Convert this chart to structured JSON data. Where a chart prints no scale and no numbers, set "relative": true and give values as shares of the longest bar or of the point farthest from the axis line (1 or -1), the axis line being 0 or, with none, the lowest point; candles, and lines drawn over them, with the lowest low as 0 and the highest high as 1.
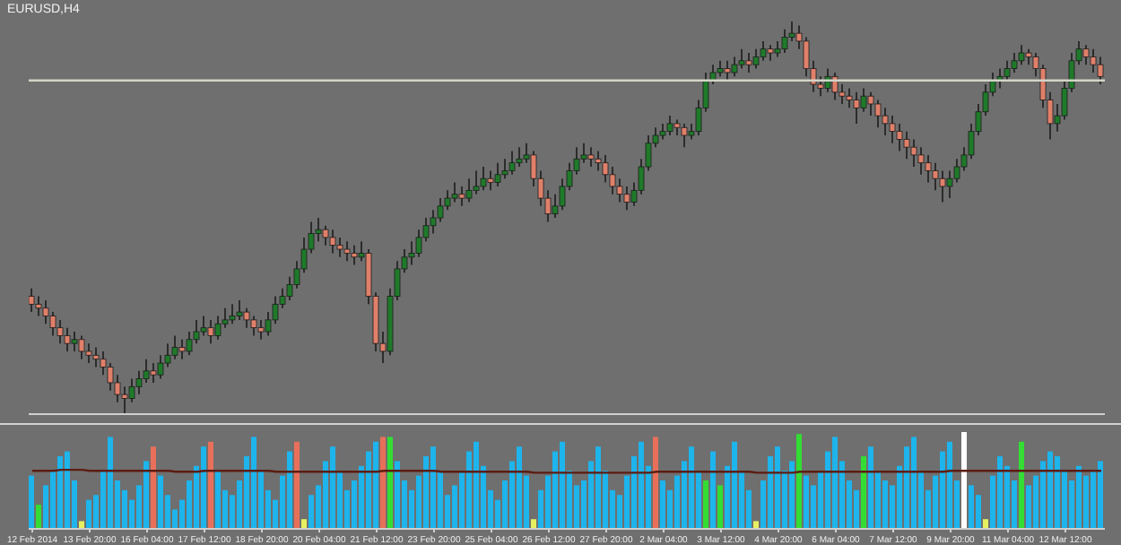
{
  "chart_data": [
    {
      "type": "candlestick",
      "title": "EURUSD,H4",
      "relative": true,
      "tick_labels": false,
      "categories": [
        null,
        null,
        null,
        null,
        null,
        null,
        null,
        null,
        null,
        null,
        null,
        null,
        null,
        null,
        null,
        null,
        null,
        null,
        null,
        null,
        null,
        null,
        null,
        null,
        null,
        null,
        null,
        null,
        null,
        null,
        null,
        null,
        null,
        null,
        null,
        null,
        null,
        null,
        null,
        null,
        null,
        null,
        null,
        null,
        null,
        null,
        null,
        null,
        null,
        null,
        null,
        null,
        null,
        null,
        null,
        null,
        null,
        null,
        null,
        null,
        null,
        null,
        null,
        null,
        null,
        null,
        null,
        null,
        null,
        null,
        null,
        null,
        null,
        null,
        null,
        null,
        null,
        null,
        null,
        null,
        null,
        null,
        null,
        null,
        null,
        null,
        null,
        null,
        null,
        null,
        null,
        null,
        null,
        null,
        null,
        null,
        null,
        null,
        null,
        null,
        null,
        null,
        null,
        null,
        null,
        null,
        null,
        null,
        null,
        null,
        null,
        null,
        null,
        null,
        null,
        null,
        null,
        null,
        null,
        null,
        null,
        null,
        null,
        null,
        null,
        null,
        null,
        null,
        null,
        null,
        null,
        null,
        null,
        null,
        null,
        null,
        null,
        null,
        null,
        null,
        null,
        null,
        null,
        null,
        null,
        null,
        null,
        null,
        null,
        null
      ],
      "ohlc": [
        [
          0.3,
          0.32,
          0.26,
          0.28
        ],
        [
          0.28,
          0.3,
          0.25,
          0.27
        ],
        [
          0.27,
          0.29,
          0.23,
          0.25
        ],
        [
          0.25,
          0.26,
          0.2,
          0.22
        ],
        [
          0.22,
          0.24,
          0.18,
          0.2
        ],
        [
          0.2,
          0.22,
          0.16,
          0.18
        ],
        [
          0.18,
          0.21,
          0.16,
          0.19
        ],
        [
          0.19,
          0.2,
          0.14,
          0.16
        ],
        [
          0.16,
          0.18,
          0.13,
          0.15
        ],
        [
          0.15,
          0.17,
          0.12,
          0.14
        ],
        [
          0.14,
          0.16,
          0.1,
          0.12
        ],
        [
          0.12,
          0.13,
          0.06,
          0.08
        ],
        [
          0.08,
          0.1,
          0.03,
          0.05
        ],
        [
          0.05,
          0.07,
          0.0,
          0.04
        ],
        [
          0.04,
          0.09,
          0.03,
          0.07
        ],
        [
          0.07,
          0.11,
          0.05,
          0.09
        ],
        [
          0.09,
          0.14,
          0.08,
          0.11
        ],
        [
          0.11,
          0.13,
          0.08,
          0.1
        ],
        [
          0.1,
          0.15,
          0.09,
          0.13
        ],
        [
          0.13,
          0.18,
          0.12,
          0.15
        ],
        [
          0.15,
          0.2,
          0.14,
          0.17
        ],
        [
          0.17,
          0.19,
          0.14,
          0.16
        ],
        [
          0.16,
          0.21,
          0.15,
          0.19
        ],
        [
          0.19,
          0.24,
          0.18,
          0.21
        ],
        [
          0.21,
          0.25,
          0.2,
          0.22
        ],
        [
          0.22,
          0.24,
          0.18,
          0.2
        ],
        [
          0.2,
          0.25,
          0.19,
          0.23
        ],
        [
          0.23,
          0.27,
          0.22,
          0.24
        ],
        [
          0.24,
          0.28,
          0.23,
          0.25
        ],
        [
          0.25,
          0.29,
          0.24,
          0.26
        ],
        [
          0.26,
          0.27,
          0.22,
          0.24
        ],
        [
          0.24,
          0.25,
          0.2,
          0.22
        ],
        [
          0.22,
          0.24,
          0.19,
          0.21
        ],
        [
          0.21,
          0.26,
          0.2,
          0.24
        ],
        [
          0.24,
          0.3,
          0.23,
          0.28
        ],
        [
          0.28,
          0.32,
          0.27,
          0.3
        ],
        [
          0.3,
          0.35,
          0.29,
          0.33
        ],
        [
          0.33,
          0.39,
          0.32,
          0.37
        ],
        [
          0.37,
          0.45,
          0.36,
          0.42
        ],
        [
          0.42,
          0.49,
          0.41,
          0.46
        ],
        [
          0.46,
          0.5,
          0.44,
          0.47
        ],
        [
          0.47,
          0.48,
          0.43,
          0.45
        ],
        [
          0.45,
          0.47,
          0.41,
          0.43
        ],
        [
          0.43,
          0.45,
          0.4,
          0.42
        ],
        [
          0.42,
          0.44,
          0.39,
          0.41
        ],
        [
          0.41,
          0.43,
          0.38,
          0.4
        ],
        [
          0.4,
          0.44,
          0.39,
          0.41
        ],
        [
          0.41,
          0.42,
          0.28,
          0.3
        ],
        [
          0.3,
          0.31,
          0.16,
          0.18
        ],
        [
          0.18,
          0.21,
          0.13,
          0.16
        ],
        [
          0.16,
          0.32,
          0.15,
          0.3
        ],
        [
          0.3,
          0.39,
          0.29,
          0.37
        ],
        [
          0.37,
          0.42,
          0.36,
          0.4
        ],
        [
          0.4,
          0.44,
          0.38,
          0.41
        ],
        [
          0.41,
          0.47,
          0.4,
          0.45
        ],
        [
          0.45,
          0.5,
          0.44,
          0.48
        ],
        [
          0.48,
          0.52,
          0.46,
          0.5
        ],
        [
          0.5,
          0.55,
          0.49,
          0.53
        ],
        [
          0.53,
          0.57,
          0.52,
          0.55
        ],
        [
          0.55,
          0.59,
          0.54,
          0.56
        ],
        [
          0.56,
          0.58,
          0.53,
          0.55
        ],
        [
          0.55,
          0.6,
          0.54,
          0.57
        ],
        [
          0.57,
          0.62,
          0.56,
          0.58
        ],
        [
          0.58,
          0.63,
          0.57,
          0.6
        ],
        [
          0.6,
          0.62,
          0.57,
          0.59
        ],
        [
          0.59,
          0.64,
          0.58,
          0.61
        ],
        [
          0.61,
          0.65,
          0.6,
          0.62
        ],
        [
          0.62,
          0.67,
          0.61,
          0.64
        ],
        [
          0.64,
          0.68,
          0.63,
          0.65
        ],
        [
          0.65,
          0.69,
          0.64,
          0.66
        ],
        [
          0.66,
          0.67,
          0.58,
          0.6
        ],
        [
          0.6,
          0.62,
          0.53,
          0.55
        ],
        [
          0.55,
          0.57,
          0.49,
          0.51
        ],
        [
          0.51,
          0.56,
          0.5,
          0.53
        ],
        [
          0.53,
          0.6,
          0.52,
          0.58
        ],
        [
          0.58,
          0.64,
          0.57,
          0.62
        ],
        [
          0.62,
          0.68,
          0.61,
          0.65
        ],
        [
          0.65,
          0.69,
          0.64,
          0.66
        ],
        [
          0.66,
          0.68,
          0.63,
          0.65
        ],
        [
          0.65,
          0.67,
          0.62,
          0.64
        ],
        [
          0.64,
          0.66,
          0.59,
          0.61
        ],
        [
          0.61,
          0.63,
          0.56,
          0.58
        ],
        [
          0.58,
          0.6,
          0.54,
          0.56
        ],
        [
          0.56,
          0.58,
          0.52,
          0.54
        ],
        [
          0.54,
          0.59,
          0.53,
          0.57
        ],
        [
          0.57,
          0.65,
          0.56,
          0.63
        ],
        [
          0.63,
          0.71,
          0.62,
          0.69
        ],
        [
          0.69,
          0.73,
          0.68,
          0.71
        ],
        [
          0.71,
          0.74,
          0.7,
          0.72
        ],
        [
          0.72,
          0.76,
          0.71,
          0.74
        ],
        [
          0.74,
          0.75,
          0.71,
          0.73
        ],
        [
          0.73,
          0.74,
          0.68,
          0.71
        ],
        [
          0.71,
          0.74,
          0.7,
          0.72
        ],
        [
          0.72,
          0.8,
          0.71,
          0.78
        ],
        [
          0.78,
          0.87,
          0.77,
          0.85
        ],
        [
          0.85,
          0.89,
          0.84,
          0.87
        ],
        [
          0.87,
          0.9,
          0.86,
          0.88
        ],
        [
          0.88,
          0.9,
          0.85,
          0.87
        ],
        [
          0.87,
          0.91,
          0.86,
          0.89
        ],
        [
          0.89,
          0.93,
          0.88,
          0.9
        ],
        [
          0.9,
          0.92,
          0.87,
          0.89
        ],
        [
          0.89,
          0.93,
          0.88,
          0.91
        ],
        [
          0.91,
          0.95,
          0.9,
          0.93
        ],
        [
          0.93,
          0.94,
          0.9,
          0.92
        ],
        [
          0.92,
          0.95,
          0.91,
          0.93
        ],
        [
          0.93,
          0.98,
          0.92,
          0.96
        ],
        [
          0.96,
          1.0,
          0.95,
          0.97
        ],
        [
          0.97,
          0.99,
          0.93,
          0.95
        ],
        [
          0.95,
          0.96,
          0.86,
          0.88
        ],
        [
          0.88,
          0.9,
          0.82,
          0.84
        ],
        [
          0.84,
          0.86,
          0.81,
          0.83
        ],
        [
          0.83,
          0.88,
          0.82,
          0.86
        ],
        [
          0.86,
          0.87,
          0.8,
          0.82
        ],
        [
          0.82,
          0.84,
          0.79,
          0.81
        ],
        [
          0.81,
          0.83,
          0.78,
          0.8
        ],
        [
          0.8,
          0.82,
          0.74,
          0.78
        ],
        [
          0.78,
          0.83,
          0.77,
          0.81
        ],
        [
          0.81,
          0.82,
          0.76,
          0.79
        ],
        [
          0.79,
          0.8,
          0.73,
          0.76
        ],
        [
          0.76,
          0.78,
          0.71,
          0.74
        ],
        [
          0.74,
          0.76,
          0.69,
          0.72
        ],
        [
          0.72,
          0.74,
          0.67,
          0.7
        ],
        [
          0.7,
          0.72,
          0.65,
          0.68
        ],
        [
          0.68,
          0.7,
          0.63,
          0.66
        ],
        [
          0.66,
          0.68,
          0.61,
          0.64
        ],
        [
          0.64,
          0.66,
          0.59,
          0.62
        ],
        [
          0.62,
          0.64,
          0.57,
          0.6
        ],
        [
          0.6,
          0.62,
          0.54,
          0.58
        ],
        [
          0.58,
          0.62,
          0.55,
          0.6
        ],
        [
          0.6,
          0.65,
          0.59,
          0.63
        ],
        [
          0.63,
          0.68,
          0.62,
          0.66
        ],
        [
          0.66,
          0.74,
          0.65,
          0.72
        ],
        [
          0.72,
          0.79,
          0.71,
          0.77
        ],
        [
          0.77,
          0.84,
          0.76,
          0.82
        ],
        [
          0.82,
          0.87,
          0.81,
          0.85
        ],
        [
          0.85,
          0.88,
          0.83,
          0.86
        ],
        [
          0.86,
          0.9,
          0.85,
          0.88
        ],
        [
          0.88,
          0.92,
          0.87,
          0.9
        ],
        [
          0.9,
          0.94,
          0.89,
          0.92
        ],
        [
          0.92,
          0.93,
          0.89,
          0.91
        ],
        [
          0.91,
          0.92,
          0.86,
          0.88
        ],
        [
          0.88,
          0.89,
          0.78,
          0.8
        ],
        [
          0.8,
          0.82,
          0.7,
          0.74
        ],
        [
          0.74,
          0.79,
          0.72,
          0.76
        ],
        [
          0.76,
          0.85,
          0.75,
          0.83
        ],
        [
          0.83,
          0.92,
          0.82,
          0.9
        ],
        [
          0.9,
          0.95,
          0.89,
          0.93
        ],
        [
          0.93,
          0.94,
          0.89,
          0.91
        ],
        [
          0.91,
          0.93,
          0.87,
          0.89
        ],
        [
          0.89,
          0.91,
          0.84,
          0.86
        ]
      ],
      "ref_lines": [
        {
          "axis": "y",
          "value": 0.85,
          "color": "#d4d4c8"
        }
      ]
    },
    {
      "type": "bar",
      "relative": true,
      "tick_labels": "x",
      "categories": [
        "12 Feb 2014",
        null,
        null,
        null,
        null,
        null,
        null,
        null,
        "13 Feb 20:00",
        null,
        null,
        null,
        null,
        null,
        null,
        null,
        "16 Feb 04:00",
        null,
        null,
        null,
        null,
        null,
        null,
        null,
        "17 Feb 12:00",
        null,
        null,
        null,
        null,
        null,
        null,
        null,
        "18 Feb 20:00",
        null,
        null,
        null,
        null,
        null,
        null,
        null,
        "20 Feb 04:00",
        null,
        null,
        null,
        null,
        null,
        null,
        null,
        "21 Feb 12:00",
        null,
        null,
        null,
        null,
        null,
        null,
        null,
        "23 Feb 20:00",
        null,
        null,
        null,
        null,
        null,
        null,
        null,
        "25 Feb 04:00",
        null,
        null,
        null,
        null,
        null,
        null,
        null,
        "26 Feb 12:00",
        null,
        null,
        null,
        null,
        null,
        null,
        null,
        "27 Feb 20:00",
        null,
        null,
        null,
        null,
        null,
        null,
        null,
        "2 Mar 04:00",
        null,
        null,
        null,
        null,
        null,
        null,
        null,
        "3 Mar 12:00",
        null,
        null,
        null,
        null,
        null,
        null,
        null,
        "4 Mar 20:00",
        null,
        null,
        null,
        null,
        null,
        null,
        null,
        "6 Mar 04:00",
        null,
        null,
        null,
        null,
        null,
        null,
        null,
        "7 Mar 12:00",
        null,
        null,
        null,
        null,
        null,
        null,
        null,
        "9 Mar 20:00",
        null,
        null,
        null,
        null,
        null,
        null,
        null,
        "11 Mar 04:00",
        null,
        null,
        null,
        null,
        null,
        null,
        null,
        "12 Mar 12:00",
        null,
        null,
        null,
        null,
        null
      ],
      "series": [
        {
          "type": "bar",
          "values": [
            0.55,
            0.25,
            0.45,
            0.6,
            0.75,
            0.8,
            0.5,
            0.08,
            0.3,
            0.35,
            0.6,
            0.95,
            0.5,
            0.4,
            0.3,
            0.45,
            0.7,
            0.85,
            0.55,
            0.35,
            0.2,
            0.3,
            0.5,
            0.65,
            0.85,
            0.9,
            0.6,
            0.4,
            0.35,
            0.5,
            0.75,
            0.95,
            0.6,
            0.4,
            0.3,
            0.55,
            0.8,
            0.9,
            0.1,
            0.35,
            0.45,
            0.7,
            0.85,
            0.6,
            0.4,
            0.5,
            0.65,
            0.8,
            0.9,
            0.95,
            0.95,
            0.7,
            0.5,
            0.4,
            0.55,
            0.75,
            0.85,
            0.6,
            0.35,
            0.45,
            0.6,
            0.8,
            0.9,
            0.65,
            0.4,
            0.3,
            0.5,
            0.7,
            0.85,
            0.55,
            0.1,
            0.4,
            0.55,
            0.8,
            0.9,
            0.6,
            0.45,
            0.5,
            0.7,
            0.85,
            0.6,
            0.4,
            0.35,
            0.55,
            0.75,
            0.9,
            0.65,
            0.95,
            0.5,
            0.4,
            0.55,
            0.7,
            0.85,
            0.6,
            0.5,
            0.8,
            0.45,
            0.65,
            0.9,
            0.6,
            0.4,
            0.08,
            0.5,
            0.75,
            0.85,
            0.6,
            0.7,
            0.98,
            0.55,
            0.45,
            0.6,
            0.8,
            0.95,
            0.7,
            0.5,
            0.4,
            0.75,
            0.85,
            0.6,
            0.5,
            0.45,
            0.65,
            0.85,
            0.95,
            0.6,
            0.4,
            0.55,
            0.8,
            0.9,
            0.5,
            1.0,
            0.45,
            0.35,
            0.1,
            0.55,
            0.75,
            0.65,
            0.5,
            0.9,
            0.45,
            0.55,
            0.7,
            0.8,
            0.75,
            0.6,
            0.5,
            0.65,
            0.55,
            0.6,
            0.7
          ],
          "colors": [
            "#1eb4ec",
            "#33dd33",
            "#1eb4ec",
            "#1eb4ec",
            "#1eb4ec",
            "#1eb4ec",
            "#1eb4ec",
            "#e6f060",
            "#1eb4ec",
            "#1eb4ec",
            "#1eb4ec",
            "#1eb4ec",
            "#1eb4ec",
            "#1eb4ec",
            "#1eb4ec",
            "#1eb4ec",
            "#1eb4ec",
            "#e8705a",
            "#1eb4ec",
            "#1eb4ec",
            "#1eb4ec",
            "#1eb4ec",
            "#1eb4ec",
            "#1eb4ec",
            "#1eb4ec",
            "#e8705a",
            "#1eb4ec",
            "#1eb4ec",
            "#1eb4ec",
            "#1eb4ec",
            "#1eb4ec",
            "#1eb4ec",
            "#1eb4ec",
            "#1eb4ec",
            "#1eb4ec",
            "#1eb4ec",
            "#1eb4ec",
            "#e8705a",
            "#e6f060",
            "#1eb4ec",
            "#1eb4ec",
            "#1eb4ec",
            "#1eb4ec",
            "#1eb4ec",
            "#1eb4ec",
            "#1eb4ec",
            "#1eb4ec",
            "#1eb4ec",
            "#1eb4ec",
            "#e8705a",
            "#33dd33",
            "#1eb4ec",
            "#1eb4ec",
            "#1eb4ec",
            "#1eb4ec",
            "#1eb4ec",
            "#1eb4ec",
            "#1eb4ec",
            "#1eb4ec",
            "#1eb4ec",
            "#1eb4ec",
            "#1eb4ec",
            "#1eb4ec",
            "#1eb4ec",
            "#1eb4ec",
            "#1eb4ec",
            "#1eb4ec",
            "#1eb4ec",
            "#1eb4ec",
            "#1eb4ec",
            "#e6f060",
            "#1eb4ec",
            "#1eb4ec",
            "#1eb4ec",
            "#1eb4ec",
            "#1eb4ec",
            "#1eb4ec",
            "#1eb4ec",
            "#1eb4ec",
            "#1eb4ec",
            "#1eb4ec",
            "#1eb4ec",
            "#1eb4ec",
            "#1eb4ec",
            "#1eb4ec",
            "#1eb4ec",
            "#1eb4ec",
            "#e8705a",
            "#1eb4ec",
            "#1eb4ec",
            "#1eb4ec",
            "#1eb4ec",
            "#1eb4ec",
            "#1eb4ec",
            "#33dd33",
            "#1eb4ec",
            "#33dd33",
            "#1eb4ec",
            "#1eb4ec",
            "#1eb4ec",
            "#1eb4ec",
            "#e6f060",
            "#1eb4ec",
            "#1eb4ec",
            "#1eb4ec",
            "#1eb4ec",
            "#1eb4ec",
            "#33dd33",
            "#1eb4ec",
            "#1eb4ec",
            "#1eb4ec",
            "#1eb4ec",
            "#1eb4ec",
            "#1eb4ec",
            "#1eb4ec",
            "#1eb4ec",
            "#33dd33",
            "#1eb4ec",
            "#1eb4ec",
            "#1eb4ec",
            "#1eb4ec",
            "#1eb4ec",
            "#1eb4ec",
            "#1eb4ec",
            "#1eb4ec",
            "#1eb4ec",
            "#1eb4ec",
            "#1eb4ec",
            "#1eb4ec",
            "#1eb4ec",
            "#ffffff",
            "#1eb4ec",
            "#1eb4ec",
            "#e6f060",
            "#1eb4ec",
            "#1eb4ec",
            "#1eb4ec",
            "#1eb4ec",
            "#33dd33",
            "#1eb4ec",
            "#1eb4ec",
            "#1eb4ec",
            "#1eb4ec",
            "#1eb4ec",
            "#1eb4ec",
            "#1eb4ec",
            "#1eb4ec",
            "#1eb4ec",
            "#1eb4ec",
            "#1eb4ec"
          ]
        },
        {
          "type": "line",
          "color": "#5c1d12",
          "values": [
            0.6,
            0.6,
            0.6,
            0.6,
            0.61,
            0.61,
            0.61,
            0.61,
            0.6,
            0.6,
            0.6,
            0.6,
            0.6,
            0.6,
            0.6,
            0.6,
            0.6,
            0.6,
            0.6,
            0.6,
            0.59,
            0.59,
            0.59,
            0.59,
            0.6,
            0.6,
            0.6,
            0.6,
            0.6,
            0.6,
            0.6,
            0.6,
            0.6,
            0.6,
            0.59,
            0.59,
            0.59,
            0.59,
            0.59,
            0.59,
            0.59,
            0.59,
            0.59,
            0.59,
            0.59,
            0.59,
            0.59,
            0.59,
            0.59,
            0.6,
            0.6,
            0.6,
            0.6,
            0.6,
            0.6,
            0.6,
            0.6,
            0.59,
            0.59,
            0.59,
            0.59,
            0.59,
            0.59,
            0.59,
            0.59,
            0.59,
            0.59,
            0.59,
            0.59,
            0.59,
            0.58,
            0.58,
            0.58,
            0.58,
            0.58,
            0.58,
            0.58,
            0.58,
            0.58,
            0.58,
            0.58,
            0.58,
            0.58,
            0.58,
            0.58,
            0.58,
            0.58,
            0.59,
            0.59,
            0.59,
            0.59,
            0.59,
            0.59,
            0.59,
            0.59,
            0.59,
            0.59,
            0.59,
            0.59,
            0.59,
            0.59,
            0.58,
            0.58,
            0.58,
            0.58,
            0.58,
            0.58,
            0.59,
            0.59,
            0.59,
            0.59,
            0.59,
            0.59,
            0.59,
            0.59,
            0.59,
            0.59,
            0.59,
            0.59,
            0.59,
            0.59,
            0.59,
            0.59,
            0.59,
            0.59,
            0.59,
            0.59,
            0.59,
            0.6,
            0.6,
            0.6,
            0.6,
            0.6,
            0.6,
            0.6,
            0.6,
            0.6,
            0.6,
            0.6,
            0.6,
            0.6,
            0.6,
            0.6,
            0.6,
            0.6,
            0.6,
            0.6,
            0.6,
            0.6,
            0.6
          ]
        }
      ]
    }
  ]
}
